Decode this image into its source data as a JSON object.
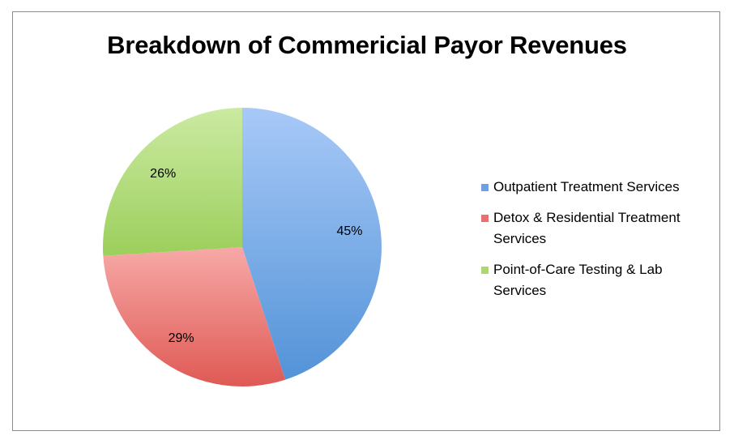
{
  "chart_data": {
    "type": "pie",
    "title": "Breakdown of Commericial Payor Revenues",
    "categories": [
      "Outpatient Treatment Services",
      "Detox & Residential Treatment Services",
      "Point-of-Care Testing & Lab Services"
    ],
    "values": [
      45,
      29,
      26
    ],
    "value_labels": [
      "45%",
      "29%",
      "26%"
    ],
    "colors": [
      "#6fa0e0",
      "#e8716f",
      "#aed773"
    ],
    "legend_position": "right",
    "start_angle": "top, clockwise"
  }
}
